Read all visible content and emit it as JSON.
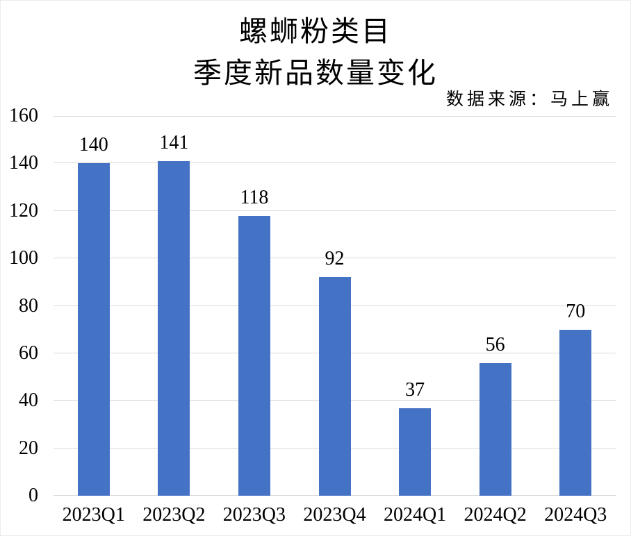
{
  "chart_data": {
    "type": "bar",
    "title_lines": [
      "螺蛳粉类目",
      "季度新品数量变化"
    ],
    "source_note": "数据来源：马上赢",
    "categories": [
      "2023Q1",
      "2023Q2",
      "2023Q3",
      "2023Q4",
      "2024Q1",
      "2024Q2",
      "2024Q3"
    ],
    "values": [
      140,
      141,
      118,
      92,
      37,
      56,
      70
    ],
    "data_labels": [
      140,
      141,
      118,
      92,
      37,
      56,
      70
    ],
    "xlabel": "",
    "ylabel": "",
    "ylim": [
      0,
      160
    ],
    "yticks": [
      0,
      20,
      40,
      60,
      80,
      100,
      120,
      140,
      160
    ],
    "grid": true,
    "legend_position": "none",
    "bar_color": "#4472c4",
    "gridline_color": "#d9d9d9",
    "axis_line_color": "#d6d6d6",
    "text_color": "#000000"
  }
}
